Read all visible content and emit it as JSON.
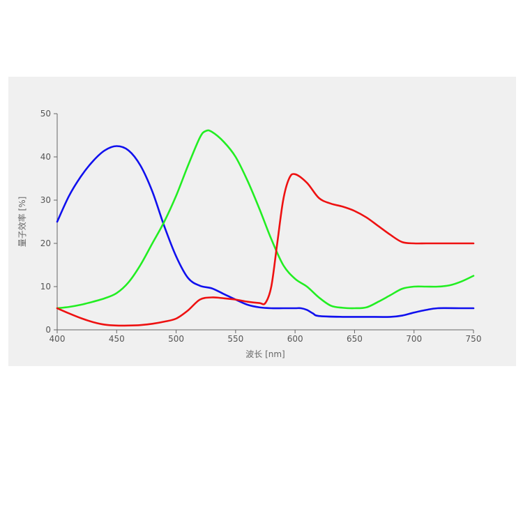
{
  "chart_data": {
    "type": "line",
    "xlabel": "波长 [nm]",
    "ylabel": "量子效率 [%]",
    "xlim": [
      400,
      750
    ],
    "ylim": [
      0,
      50
    ],
    "xticks": [
      400,
      450,
      500,
      550,
      600,
      650,
      700,
      750
    ],
    "yticks": [
      0,
      10,
      20,
      30,
      40,
      50
    ],
    "xtick_labels": [
      "400",
      "450",
      "500",
      "550",
      "600",
      "650",
      "700",
      "750"
    ],
    "ytick_labels": [
      "0",
      "10",
      "20",
      "30",
      "40",
      "50"
    ],
    "grid": false,
    "legend": "none",
    "series": [
      {
        "color": "#1010ee",
        "x": [
          400,
          410,
          420,
          430,
          440,
          450,
          460,
          470,
          480,
          490,
          500,
          510,
          520,
          530,
          540,
          550,
          560,
          570,
          580,
          590,
          600,
          605,
          610,
          615,
          620,
          640,
          660,
          680,
          690,
          700,
          710,
          720,
          740,
          750
        ],
        "y": [
          25,
          31,
          35.5,
          39,
          41.5,
          42.5,
          41.5,
          38,
          32,
          24,
          17,
          12,
          10.2,
          9.6,
          8.3,
          7,
          5.8,
          5.2,
          5,
          5,
          5,
          5,
          4.6,
          3.8,
          3.2,
          3,
          3,
          3,
          3.3,
          4,
          4.6,
          5,
          5,
          5
        ]
      },
      {
        "color": "#22ee22",
        "x": [
          400,
          410,
          420,
          430,
          440,
          450,
          460,
          470,
          480,
          490,
          500,
          510,
          520,
          525,
          530,
          540,
          550,
          560,
          570,
          580,
          590,
          600,
          610,
          620,
          630,
          640,
          650,
          660,
          670,
          680,
          690,
          700,
          710,
          720,
          730,
          740,
          750
        ],
        "y": [
          5,
          5.3,
          5.8,
          6.5,
          7.3,
          8.5,
          11,
          15,
          20,
          25,
          31,
          38,
          44.5,
          46,
          45.8,
          43.5,
          40,
          34.5,
          28,
          21,
          15,
          11.8,
          10,
          7.5,
          5.6,
          5.1,
          5,
          5.2,
          6.5,
          8,
          9.5,
          10,
          10,
          10,
          10.3,
          11.2,
          12.5
        ]
      },
      {
        "color": "#ee1111",
        "x": [
          400,
          410,
          420,
          430,
          440,
          450,
          460,
          470,
          480,
          490,
          500,
          510,
          520,
          530,
          540,
          550,
          560,
          570,
          575,
          580,
          585,
          590,
          595,
          600,
          610,
          620,
          630,
          640,
          650,
          660,
          670,
          680,
          690,
          700,
          710,
          720,
          730,
          750
        ],
        "y": [
          5,
          3.8,
          2.7,
          1.8,
          1.2,
          1,
          1,
          1.1,
          1.4,
          1.9,
          2.6,
          4.5,
          7,
          7.5,
          7.3,
          7,
          6.5,
          6.2,
          6.2,
          10,
          20,
          30,
          35,
          36,
          34,
          30.5,
          29.2,
          28.5,
          27.5,
          26,
          24,
          22,
          20.3,
          20,
          20,
          20,
          20,
          20
        ]
      }
    ]
  }
}
